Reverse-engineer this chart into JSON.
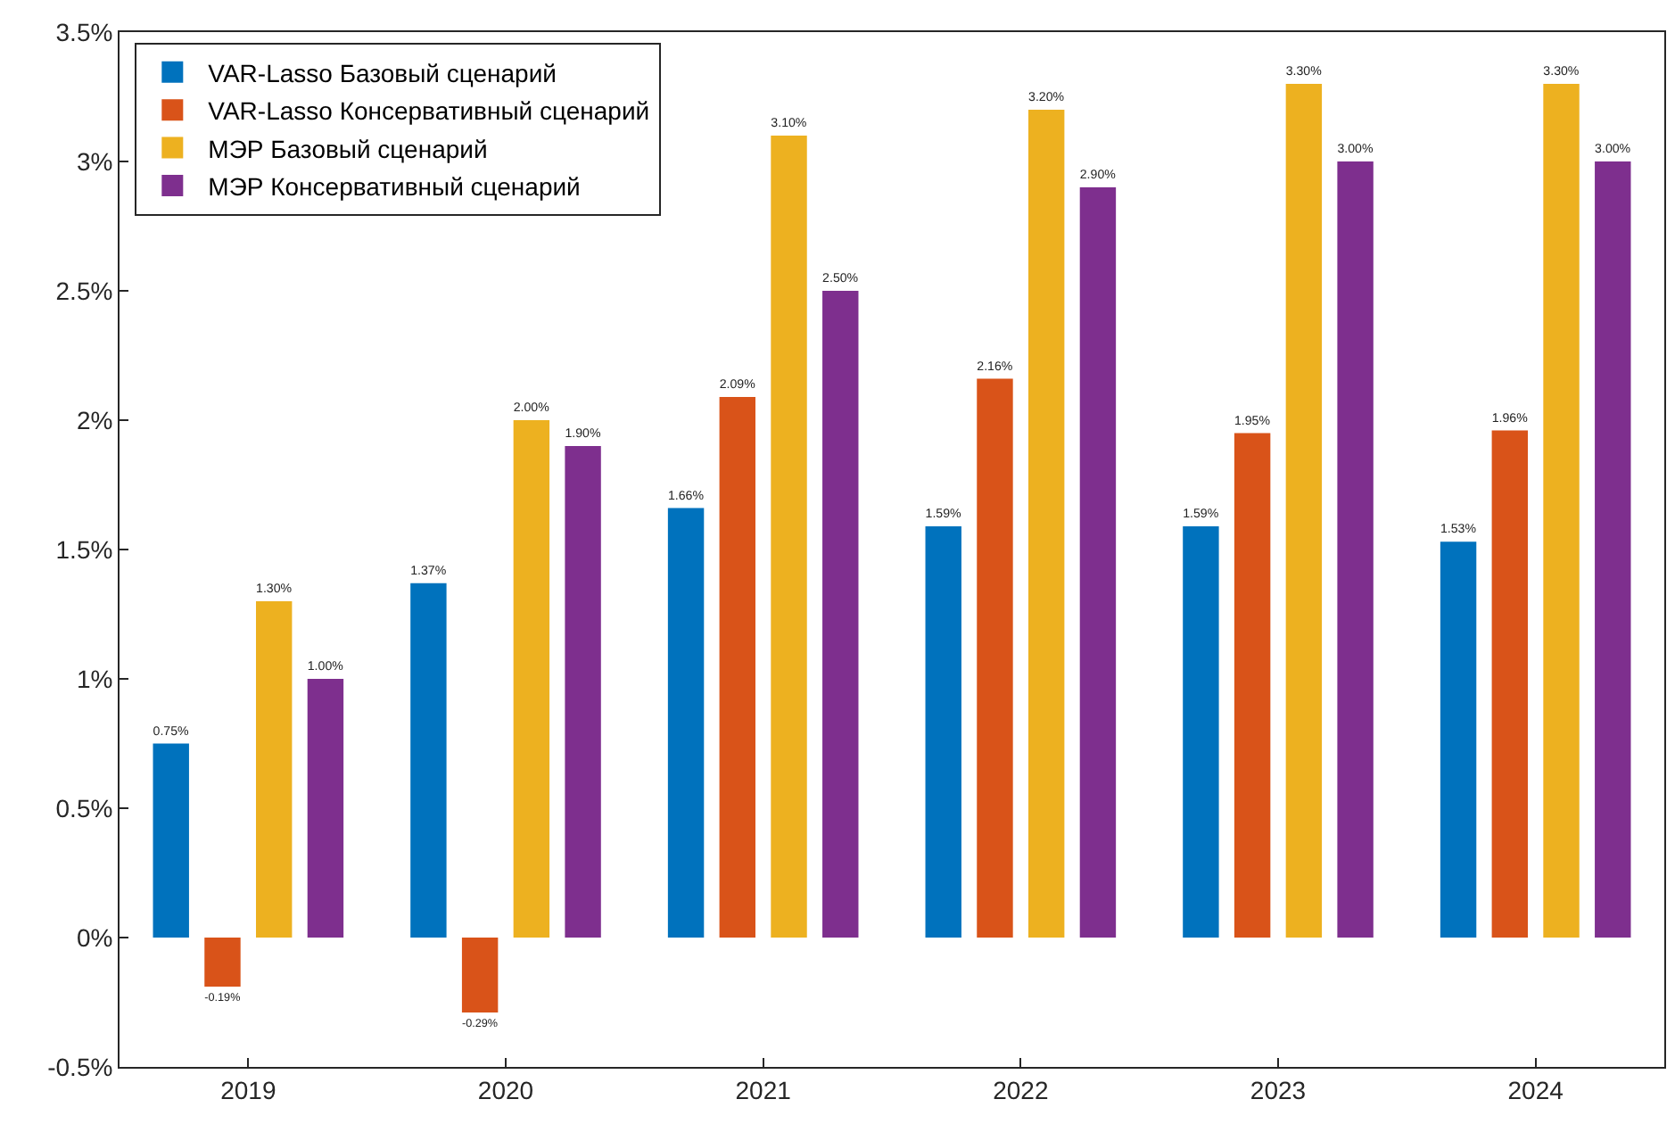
{
  "chart_data": {
    "type": "bar",
    "categories": [
      "2019",
      "2020",
      "2021",
      "2022",
      "2023",
      "2024"
    ],
    "series": [
      {
        "name": "VAR-Lasso Базовый сценарий",
        "color": "#0072bd",
        "values": [
          0.75,
          1.37,
          1.66,
          1.59,
          1.59,
          1.53
        ],
        "value_labels": [
          "0.75%",
          "1.37%",
          "1.66%",
          "1.59%",
          "1.59%",
          "1.53%"
        ]
      },
      {
        "name": "VAR-Lasso Консервативный сценарий",
        "color": "#d95319",
        "values": [
          -0.19,
          -0.29,
          2.09,
          2.16,
          1.95,
          1.96
        ],
        "value_labels": [
          "-0.19%",
          "-0.29%",
          "2.09%",
          "2.16%",
          "1.95%",
          "1.96%"
        ]
      },
      {
        "name": "МЭР Базовый сценарий",
        "color": "#edb120",
        "values": [
          1.3,
          2.0,
          3.1,
          3.2,
          3.3,
          3.3
        ],
        "value_labels": [
          "1.30%",
          "2.00%",
          "3.10%",
          "3.20%",
          "3.30%",
          "3.30%"
        ]
      },
      {
        "name": "МЭР Консервативный сценарий",
        "color": "#7e2f8e",
        "values": [
          1.0,
          1.9,
          2.5,
          2.9,
          3.0,
          3.0
        ],
        "value_labels": [
          "1.00%",
          "1.90%",
          "2.50%",
          "2.90%",
          "3.00%",
          "3.00%"
        ]
      }
    ],
    "ylim": [
      -0.5,
      3.5
    ],
    "yticks": [
      {
        "value": -0.5,
        "label": "-0.5%"
      },
      {
        "value": 0,
        "label": "0%"
      },
      {
        "value": 0.5,
        "label": "0.5%"
      },
      {
        "value": 1,
        "label": "1%"
      },
      {
        "value": 1.5,
        "label": "1.5%"
      },
      {
        "value": 2,
        "label": "2%"
      },
      {
        "value": 2.5,
        "label": "2.5%"
      },
      {
        "value": 3,
        "label": "3%"
      },
      {
        "value": 3.5,
        "label": "3.5%"
      }
    ],
    "legend": "top left",
    "grid": false
  }
}
